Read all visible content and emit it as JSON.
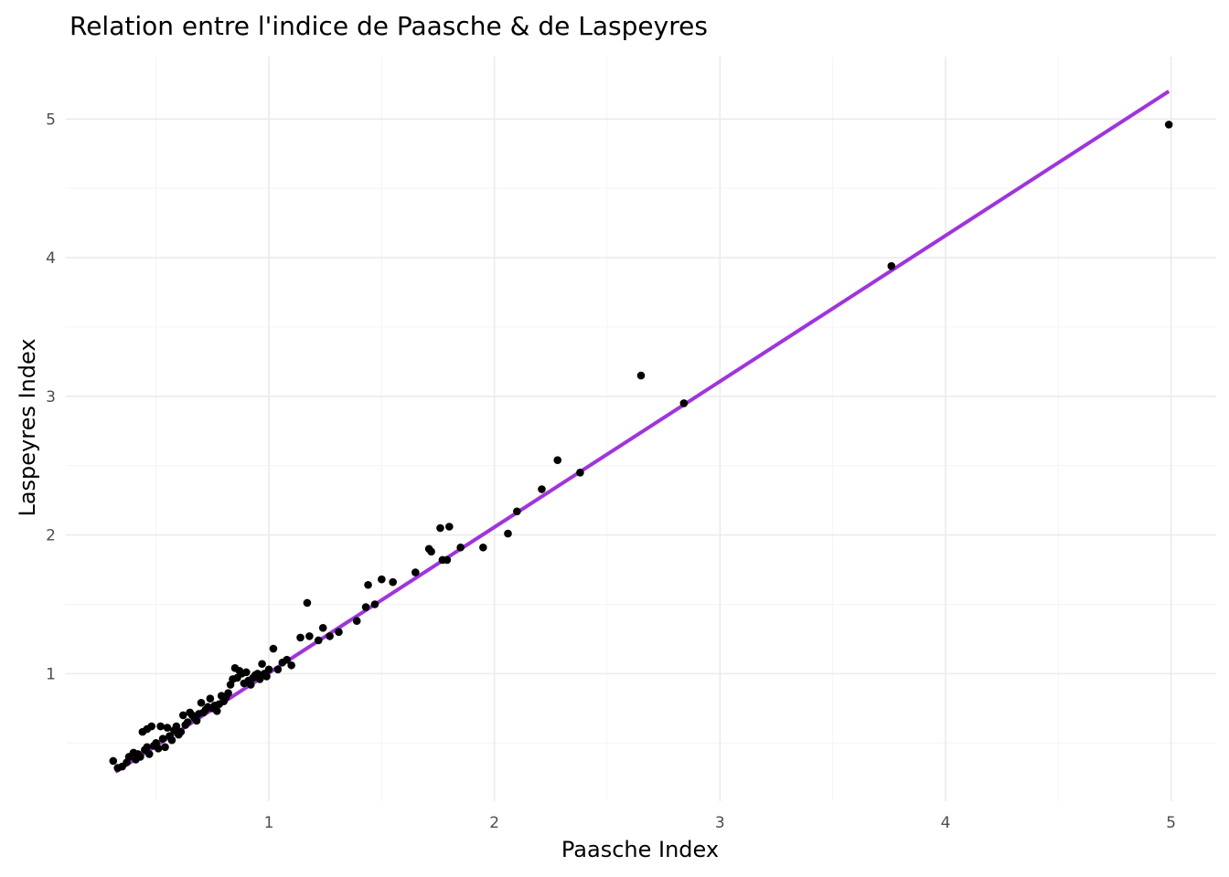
{
  "chart_data": {
    "type": "scatter",
    "title": "Relation entre l'indice de Paasche & de Laspeyres",
    "xlabel": "Paasche Index",
    "ylabel": "Laspeyres Index",
    "xlim": [
      0.1,
      5.2
    ],
    "ylim": [
      0.08,
      5.45
    ],
    "x_ticks": [
      1,
      2,
      3,
      4,
      5
    ],
    "x_tick_labels": [
      "1",
      "2",
      "3",
      "4",
      "5"
    ],
    "y_ticks": [
      1,
      2,
      3,
      4,
      5
    ],
    "y_tick_labels": [
      "1",
      "2",
      "3",
      "4",
      "5"
    ],
    "grid": true,
    "legend": "none",
    "point_color": "#000000",
    "fit_line": {
      "x_start": 0.32,
      "y_start": 0.29,
      "x_end": 4.99,
      "y_end": 5.2,
      "color": "#a033e0"
    },
    "points": [
      [
        0.31,
        0.37
      ],
      [
        0.33,
        0.32
      ],
      [
        0.35,
        0.33
      ],
      [
        0.37,
        0.36
      ],
      [
        0.38,
        0.4
      ],
      [
        0.4,
        0.43
      ],
      [
        0.41,
        0.38
      ],
      [
        0.42,
        0.42
      ],
      [
        0.43,
        0.4
      ],
      [
        0.44,
        0.58
      ],
      [
        0.45,
        0.45
      ],
      [
        0.46,
        0.47
      ],
      [
        0.46,
        0.6
      ],
      [
        0.47,
        0.42
      ],
      [
        0.48,
        0.62
      ],
      [
        0.49,
        0.48
      ],
      [
        0.5,
        0.5
      ],
      [
        0.51,
        0.46
      ],
      [
        0.52,
        0.62
      ],
      [
        0.53,
        0.53
      ],
      [
        0.54,
        0.47
      ],
      [
        0.55,
        0.61
      ],
      [
        0.56,
        0.55
      ],
      [
        0.57,
        0.52
      ],
      [
        0.58,
        0.59
      ],
      [
        0.59,
        0.62
      ],
      [
        0.6,
        0.56
      ],
      [
        0.61,
        0.58
      ],
      [
        0.62,
        0.7
      ],
      [
        0.63,
        0.63
      ],
      [
        0.64,
        0.65
      ],
      [
        0.65,
        0.72
      ],
      [
        0.66,
        0.7
      ],
      [
        0.67,
        0.68
      ],
      [
        0.68,
        0.66
      ],
      [
        0.69,
        0.71
      ],
      [
        0.7,
        0.79
      ],
      [
        0.71,
        0.72
      ],
      [
        0.72,
        0.74
      ],
      [
        0.73,
        0.76
      ],
      [
        0.74,
        0.82
      ],
      [
        0.75,
        0.75
      ],
      [
        0.76,
        0.77
      ],
      [
        0.77,
        0.73
      ],
      [
        0.78,
        0.78
      ],
      [
        0.79,
        0.84
      ],
      [
        0.8,
        0.8
      ],
      [
        0.81,
        0.83
      ],
      [
        0.82,
        0.86
      ],
      [
        0.83,
        0.92
      ],
      [
        0.84,
        0.96
      ],
      [
        0.85,
        1.04
      ],
      [
        0.86,
        0.97
      ],
      [
        0.87,
        1.02
      ],
      [
        0.88,
        1.0
      ],
      [
        0.89,
        0.93
      ],
      [
        0.9,
        1.01
      ],
      [
        0.91,
        0.95
      ],
      [
        0.92,
        0.92
      ],
      [
        0.93,
        0.97
      ],
      [
        0.94,
        0.99
      ],
      [
        0.95,
        1.0
      ],
      [
        0.96,
        0.96
      ],
      [
        0.97,
        1.07
      ],
      [
        0.98,
        1.0
      ],
      [
        0.99,
        0.98
      ],
      [
        1.0,
        1.03
      ],
      [
        1.02,
        1.18
      ],
      [
        1.04,
        1.03
      ],
      [
        1.06,
        1.08
      ],
      [
        1.08,
        1.1
      ],
      [
        1.1,
        1.06
      ],
      [
        1.14,
        1.26
      ],
      [
        1.17,
        1.51
      ],
      [
        1.18,
        1.27
      ],
      [
        1.22,
        1.24
      ],
      [
        1.24,
        1.33
      ],
      [
        1.27,
        1.27
      ],
      [
        1.31,
        1.3
      ],
      [
        1.39,
        1.38
      ],
      [
        1.43,
        1.48
      ],
      [
        1.44,
        1.64
      ],
      [
        1.47,
        1.5
      ],
      [
        1.5,
        1.68
      ],
      [
        1.55,
        1.66
      ],
      [
        1.65,
        1.73
      ],
      [
        1.71,
        1.9
      ],
      [
        1.72,
        1.88
      ],
      [
        1.76,
        2.05
      ],
      [
        1.77,
        1.82
      ],
      [
        1.79,
        1.82
      ],
      [
        1.8,
        2.06
      ],
      [
        1.85,
        1.91
      ],
      [
        1.95,
        1.91
      ],
      [
        2.06,
        2.01
      ],
      [
        2.1,
        2.17
      ],
      [
        2.21,
        2.33
      ],
      [
        2.28,
        2.54
      ],
      [
        2.38,
        2.45
      ],
      [
        2.65,
        3.15
      ],
      [
        2.84,
        2.95
      ],
      [
        3.76,
        3.94
      ],
      [
        4.99,
        4.96
      ]
    ]
  }
}
